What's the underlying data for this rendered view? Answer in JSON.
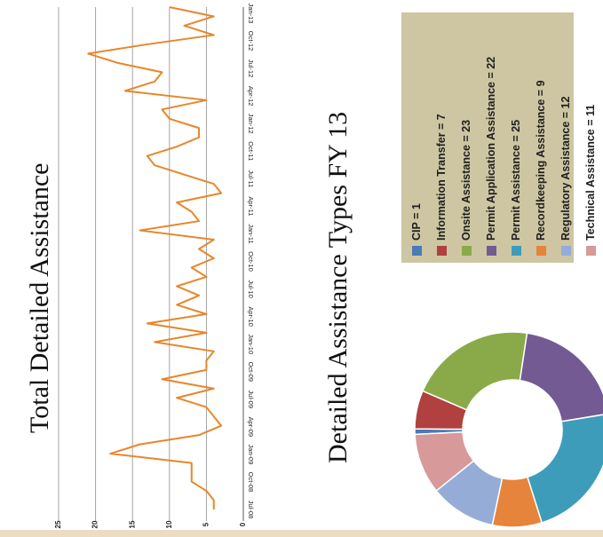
{
  "chart_data": [
    {
      "type": "line",
      "title": "Total Detailed Assistance",
      "ylim": [
        0,
        25
      ],
      "y_ticks": [
        0,
        5,
        10,
        15,
        20,
        25
      ],
      "x_tick_labels": [
        "Jul-08",
        "Oct-08",
        "Jan-09",
        "Apr-09",
        "Jul-09",
        "Oct-09",
        "Jan-10",
        "Apr-10",
        "Jul-10",
        "Oct-10",
        "Jan-11",
        "Apr-11",
        "Jul-11",
        "Oct-11",
        "Jan-12",
        "Apr-12",
        "Jul-12",
        "Oct-12",
        "Jan-13"
      ],
      "grid": true,
      "line_color": "#e8862a",
      "series": [
        {
          "values": [
            4,
            4,
            5,
            7,
            7,
            7,
            18,
            14,
            6,
            3,
            4,
            5,
            9,
            4,
            11,
            5,
            5,
            4,
            12,
            5,
            13,
            5,
            9,
            6,
            9,
            5,
            7,
            4,
            6,
            4,
            14,
            6,
            7,
            9,
            3,
            4,
            8,
            12,
            13,
            9,
            6,
            6,
            10,
            11,
            5,
            16,
            12,
            11,
            17,
            21,
            13,
            4,
            8,
            4,
            10
          ]
        }
      ]
    },
    {
      "type": "pie",
      "subtype": "donut",
      "title": "Detailed Assistance Types FY 13",
      "slices": [
        {
          "label": "CIP = 1",
          "value": 1,
          "color": "#4a7ab8"
        },
        {
          "label": "Information Transfer = 7",
          "value": 7,
          "color": "#b0413e"
        },
        {
          "label": "Onsite Assistance = 23",
          "value": 23,
          "color": "#8aaa4a"
        },
        {
          "label": "Permit Application Assistance = 22",
          "value": 22,
          "color": "#735a93"
        },
        {
          "label": "Permit Assistance = 25",
          "value": 25,
          "color": "#3d9cba"
        },
        {
          "label": "Recordkeeping Assistance = 9",
          "value": 9,
          "color": "#e5843a"
        },
        {
          "label": "Regulatory Assistance = 12",
          "value": 12,
          "color": "#95acd6"
        },
        {
          "label": "Technical Assistance = 11",
          "value": 11,
          "color": "#d7999a"
        }
      ]
    }
  ]
}
